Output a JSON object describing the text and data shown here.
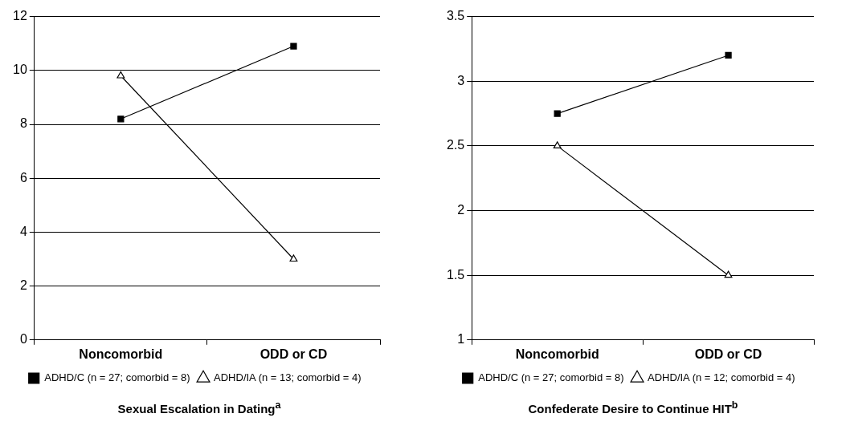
{
  "chart_data": [
    {
      "type": "line",
      "title": "Sexual Escalation in Dating$^{a}$",
      "categories": [
        "Noncomorbid",
        "ODD or CD"
      ],
      "series": [
        {
          "name": "ADHD/C (n = 27; comorbid = 8)",
          "color": "#000000",
          "marker": "square",
          "values": [
            8.2,
            10.9
          ]
        },
        {
          "name": "ADHD/IA (n = 13; comorbid = 4)",
          "color": "#000000",
          "marker": "triangle",
          "values": [
            9.8,
            3.0
          ]
        }
      ],
      "ylim": [
        0,
        12
      ],
      "yticks": [
        0,
        2,
        4,
        6,
        8,
        10,
        12
      ],
      "grid": "y",
      "legend": "bottom"
    },
    {
      "type": "line",
      "title": "Confederate Desire to Continue HIT$^{b}$",
      "categories": [
        "Noncomorbid",
        "ODD or CD"
      ],
      "series": [
        {
          "name": "ADHD/C (n = 27; comorbid = 8)",
          "color": "#000000",
          "marker": "square",
          "values": [
            2.75,
            3.2
          ]
        },
        {
          "name": "ADHD/IA (n = 12; comorbid = 4)",
          "color": "#000000",
          "marker": "triangle",
          "values": [
            2.5,
            1.5
          ]
        }
      ],
      "ylim": [
        1,
        3.5
      ],
      "yticks": [
        1,
        1.5,
        2,
        2.5,
        3,
        3.5
      ],
      "grid": "y",
      "legend": "bottom"
    }
  ]
}
